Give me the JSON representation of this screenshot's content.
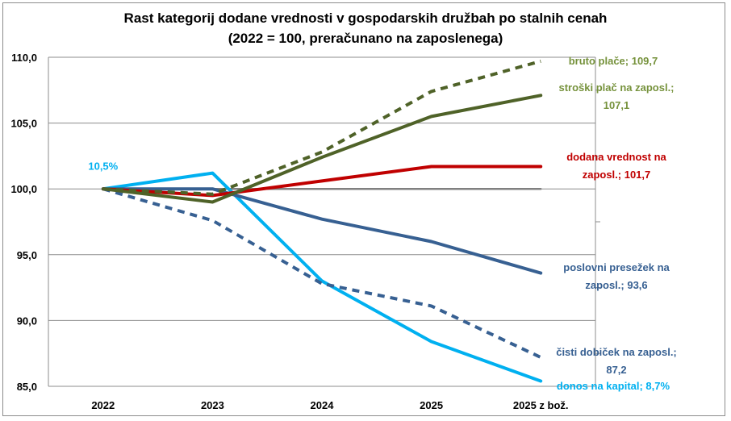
{
  "chart_data": {
    "type": "line",
    "title": "Rast kategorij dodane vrednosti v gospodarskih družbah po stalnih cenah",
    "subtitle": "(2022 = 100, preračunano na zaposlenega)",
    "xlabel": "",
    "ylabel": "",
    "categories": [
      "2022",
      "2023",
      "2024",
      "2025",
      "2025 z bož."
    ],
    "ylim": [
      85,
      110
    ],
    "yticks": [
      85,
      90,
      95,
      100,
      105,
      110
    ],
    "ytick_labels": [
      "85,0",
      "90,0",
      "95,0",
      "100,0",
      "105,0",
      "110,0"
    ],
    "grid": true,
    "legend": "none (data labels at line ends, right)",
    "series": [
      {
        "name": "bruto plače",
        "color": "#4F6228",
        "style": "dashed",
        "values": [
          100,
          99.6,
          102.8,
          107.4,
          109.7
        ],
        "end_label": [
          "bruto plače; 109,7"
        ]
      },
      {
        "name": "stroški plač na zaposl.",
        "color": "#4F6228",
        "style": "solid",
        "values": [
          100,
          99.0,
          102.4,
          105.5,
          107.1
        ],
        "end_label": [
          "stroški plač na zaposl.;",
          "107,1"
        ]
      },
      {
        "name": "dodana vrednost na zaposl.",
        "color": "#C00000",
        "style": "solid",
        "values": [
          100,
          99.5,
          100.6,
          101.7,
          101.7
        ],
        "end_label": [
          "dodana vrednost na",
          "zaposl.; 101,7"
        ]
      },
      {
        "name": "poslovni presežek na zaposl.",
        "color": "#376092",
        "style": "solid",
        "values": [
          100,
          100.0,
          97.7,
          96.0,
          93.6
        ],
        "end_label": [
          "poslovni presežek na",
          "zaposl.; 93,6"
        ]
      },
      {
        "name": "čisti dobiček na zaposl.",
        "color": "#376092",
        "style": "dashed",
        "values": [
          100,
          97.6,
          92.8,
          91.1,
          87.2
        ],
        "end_label": [
          "čisti dobiček na zaposl.;",
          "87,2"
        ]
      },
      {
        "name": "donos na kapital",
        "color": "#00B0F0",
        "style": "solid",
        "values": [
          100,
          101.2,
          93.0,
          88.4,
          85.4
        ],
        "start_label": "10,5%",
        "end_label": [
          "donos na kapital; 8,7%"
        ]
      },
      {
        "name": "2022 = 100",
        "color": "#808080",
        "style": "solid",
        "values": [
          100,
          100,
          100,
          100,
          100
        ]
      }
    ]
  }
}
